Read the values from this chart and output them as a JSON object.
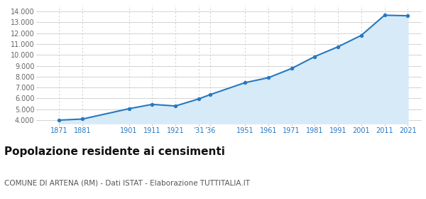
{
  "years": [
    1871,
    1881,
    1901,
    1911,
    1921,
    1931,
    1936,
    1951,
    1961,
    1971,
    1981,
    1991,
    2001,
    2011,
    2021
  ],
  "population": [
    4000,
    4100,
    5050,
    5450,
    5300,
    5950,
    6350,
    7450,
    7900,
    8750,
    9850,
    10750,
    11800,
    13650,
    13600
  ],
  "line_color": "#2878c0",
  "fill_color": "#d6eaf8",
  "marker_color": "#2878c0",
  "background_color": "#ffffff",
  "grid_color": "#cccccc",
  "title": "Popolazione residente ai censimenti",
  "subtitle": "COMUNE DI ARTENA (RM) - Dati ISTAT - Elaborazione TUTTITALIA.IT",
  "title_fontsize": 11,
  "subtitle_fontsize": 7.5,
  "x_tick_positions": [
    1871,
    1881,
    1901,
    1911,
    1921,
    1931,
    1936,
    1951,
    1961,
    1971,
    1981,
    1991,
    2001,
    2011,
    2021
  ],
  "x_tick_labels": [
    "1871",
    "1881",
    "1901",
    "1911",
    "1921",
    "’31",
    "’36",
    "1951",
    "1961",
    "1971",
    "1981",
    "1991",
    "2001",
    "2011",
    "2021"
  ],
  "ylim": [
    3700,
    14500
  ],
  "yticks": [
    4000,
    5000,
    6000,
    7000,
    8000,
    9000,
    10000,
    11000,
    12000,
    13000,
    14000
  ]
}
